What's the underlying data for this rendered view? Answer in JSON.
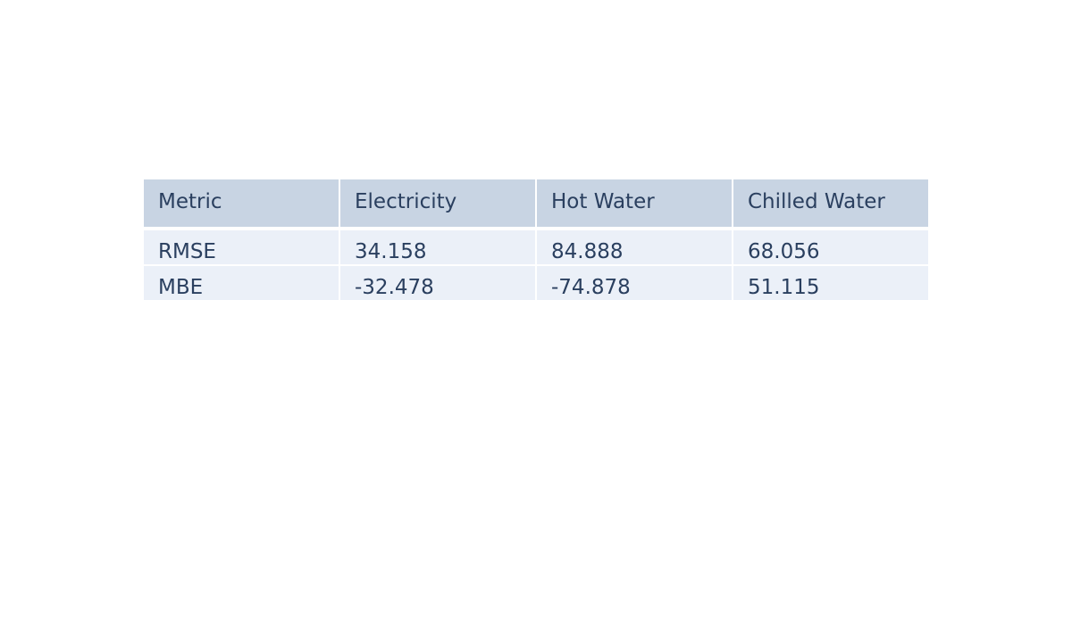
{
  "chart_data": {
    "type": "table",
    "columns": [
      "Metric",
      "Electricity",
      "Hot Water",
      "Chilled Water"
    ],
    "rows": [
      [
        "RMSE",
        "34.158",
        "84.888",
        "68.056"
      ],
      [
        "MBE",
        "-32.478",
        "-74.878",
        "51.115"
      ]
    ],
    "header_fill": "#c8d4e3",
    "cell_fill": "#ebf0f8",
    "text_color": "#2a3f5f"
  }
}
